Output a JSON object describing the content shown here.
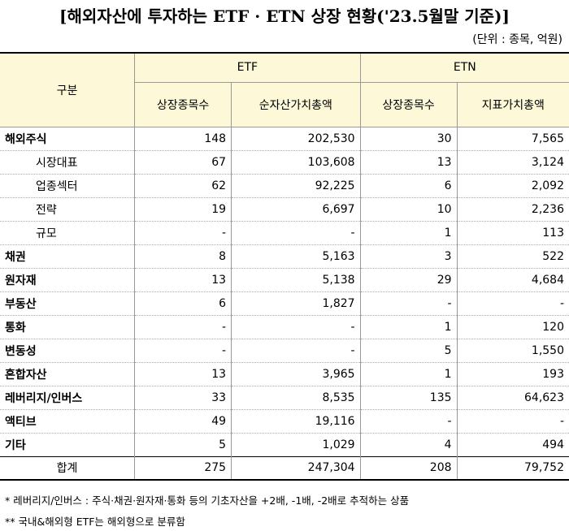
{
  "header": {
    "title": "[해외자산에 투자하는 ETF · ETN 상장 현황('23.5월말 기준)]",
    "unit": "(단위 : 종목, 억원)"
  },
  "table": {
    "corner": "구분",
    "groups": [
      "ETF",
      "ETN"
    ],
    "columns": [
      "상장종목수",
      "순자산가치총액",
      "상장종목수",
      "지표가치총액"
    ],
    "rows": [
      [
        "해외주식",
        "148",
        "202,530",
        "30",
        "7,565"
      ],
      [
        "시장대표",
        "67",
        "103,608",
        "13",
        "3,124"
      ],
      [
        "업종섹터",
        "62",
        "92,225",
        "6",
        "2,092"
      ],
      [
        "전략",
        "19",
        "6,697",
        "10",
        "2,236"
      ],
      [
        "규모",
        "-",
        "-",
        "1",
        "113"
      ],
      [
        "채권",
        "8",
        "5,163",
        "3",
        "522"
      ],
      [
        "원자재",
        "13",
        "5,138",
        "29",
        "4,684"
      ],
      [
        "부동산",
        "6",
        "1,827",
        "-",
        "-"
      ],
      [
        "통화",
        "-",
        "-",
        "1",
        "120"
      ],
      [
        "변동성",
        "-",
        "-",
        "5",
        "1,550"
      ],
      [
        "혼합자산",
        "13",
        "3,965",
        "1",
        "193"
      ],
      [
        "레버리지/인버스",
        "33",
        "8,535",
        "135",
        "64,623"
      ],
      [
        "액티브",
        "49",
        "19,116",
        "-",
        "-"
      ],
      [
        "기타",
        "5",
        "1,029",
        "4",
        "494"
      ],
      [
        "합계",
        "275",
        "247,304",
        "208",
        "79,752"
      ]
    ]
  },
  "notes": [
    "* 레버리지/인버스 : 주식·채권·원자재·통화 등의 기초자산을 +2배, -1배, -2배로 추적하는 상품",
    "** 국내&해외형 ETF는 해외형으로 분류함"
  ]
}
